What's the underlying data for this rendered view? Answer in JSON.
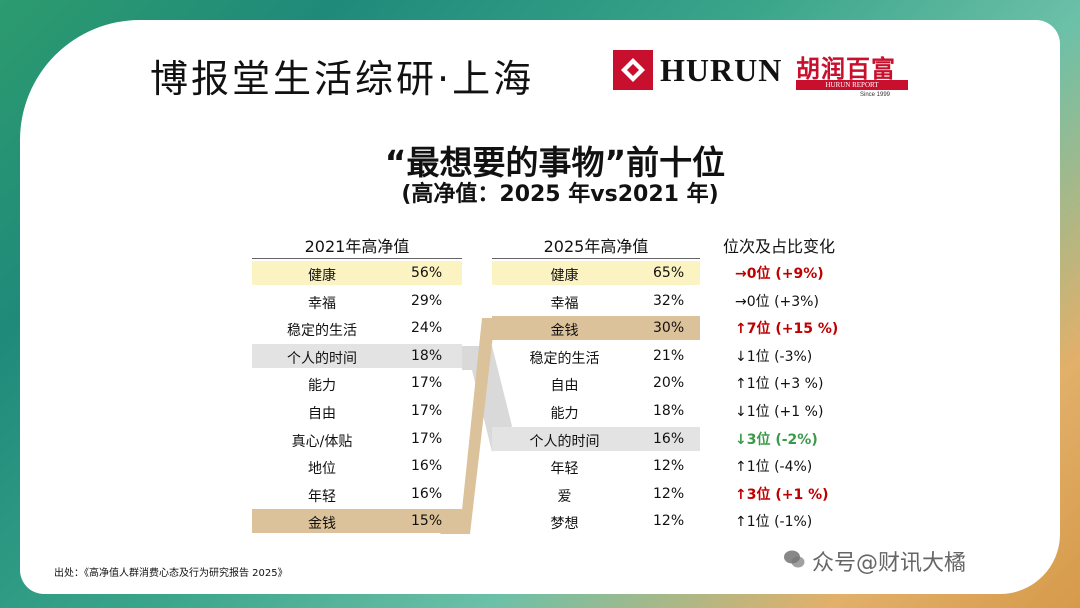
{
  "header": {
    "brand": "博报堂生活综研·上海",
    "logo_text": "HURUN",
    "logo_cn": "胡润百富",
    "logo_report": "HURUN REPORT",
    "since": "Since 1999"
  },
  "title": "“最想要的事物”前十位",
  "subtitle": "(高净值：2025 年vs2021 年)",
  "table": {
    "head_2021": "2021年高净值",
    "head_2025": "2025年高净值",
    "head_change": "位次及占比变化",
    "rows_2021": [
      {
        "label": "健康",
        "value": "56%",
        "highlight": "yellow"
      },
      {
        "label": "幸福",
        "value": "29%"
      },
      {
        "label": "稳定的生活",
        "value": "24%"
      },
      {
        "label": "个人的时间",
        "value": "18%",
        "highlight": "gray"
      },
      {
        "label": "能力",
        "value": "17%"
      },
      {
        "label": "自由",
        "value": "17%"
      },
      {
        "label": "真心/体贴",
        "value": "17%"
      },
      {
        "label": "地位",
        "value": "16%"
      },
      {
        "label": "年轻",
        "value": "16%"
      },
      {
        "label": "金钱",
        "value": "15%",
        "highlight": "tan"
      }
    ],
    "rows_2025": [
      {
        "label": "健康",
        "value": "65%",
        "highlight": "yellow"
      },
      {
        "label": "幸福",
        "value": "32%"
      },
      {
        "label": "金钱",
        "value": "30%",
        "highlight": "tan"
      },
      {
        "label": "稳定的生活",
        "value": "21%"
      },
      {
        "label": "自由",
        "value": "20%"
      },
      {
        "label": "能力",
        "value": "18%"
      },
      {
        "label": "个人的时间",
        "value": "16%",
        "highlight": "gray"
      },
      {
        "label": "年轻",
        "value": "12%"
      },
      {
        "label": "爱",
        "value": "12%"
      },
      {
        "label": "梦想",
        "value": "12%"
      }
    ],
    "changes": [
      {
        "text": "→0位 (+9%)",
        "style": "red"
      },
      {
        "text": "→0位 (+3%)",
        "style": "normal"
      },
      {
        "text": "↑7位 (+15 %)",
        "style": "red"
      },
      {
        "text": "↓1位 (-3%)",
        "style": "normal"
      },
      {
        "text": "↑1位 (+3 %)",
        "style": "normal"
      },
      {
        "text": "↓1位 (+1 %)",
        "style": "normal"
      },
      {
        "text": "↓3位 (-2%)",
        "style": "green"
      },
      {
        "text": "↑1位 (-4%)",
        "style": "normal"
      },
      {
        "text": "↑3位 (+1 %)",
        "style": "red"
      },
      {
        "text": "↑1位 (-1%)",
        "style": "normal"
      }
    ]
  },
  "colors": {
    "highlight_yellow": "#fbf3c2",
    "highlight_gray": "#e3e3e3",
    "highlight_tan": "#dcc29a",
    "up_red": "#c00000",
    "down_green": "#3a9a4a"
  },
  "source": "出处：《高净值人群消费心态及行为研究报告 2025》",
  "watermark": "众号@财讯大橘"
}
